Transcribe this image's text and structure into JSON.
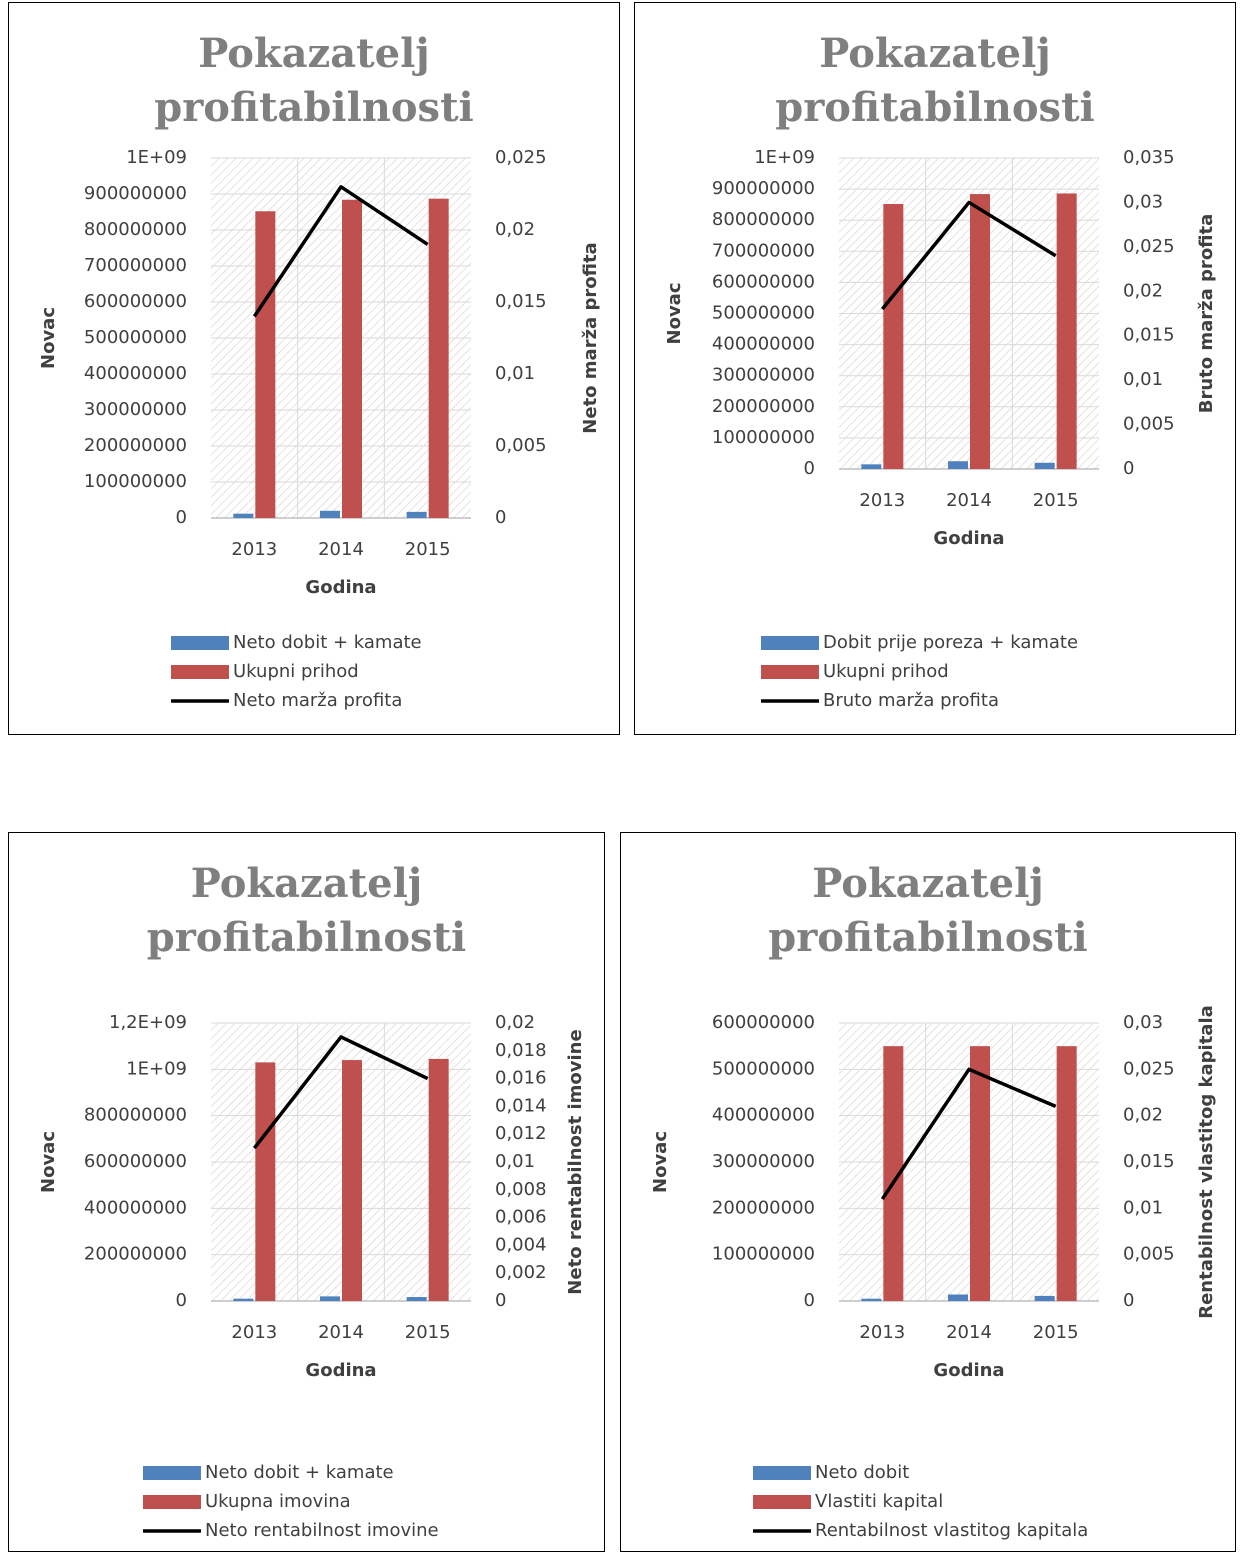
{
  "chart_data": [
    {
      "type": "bar",
      "title": "Pokazatelj profitabilnosti",
      "x_label": "Godina",
      "y_label": "Novac",
      "y2_label": "Neto marža profita",
      "categories": [
        "2013",
        "2014",
        "2015"
      ],
      "series": [
        {
          "name": "Neto dobit + kamate",
          "type": "bar",
          "color": "#4f81bd",
          "values": [
            12000000,
            20000000,
            17000000
          ]
        },
        {
          "name": "Ukupni prihod",
          "type": "bar",
          "color": "#c0504d",
          "values": [
            852000000,
            884000000,
            887000000
          ]
        },
        {
          "name": "Neto marža profita",
          "type": "line",
          "axis": "y2",
          "color": "#000000",
          "values": [
            0.014,
            0.023,
            0.019
          ]
        }
      ],
      "ylim": [
        0,
        1000000000
      ],
      "yticks": [
        0,
        100000000,
        200000000,
        300000000,
        400000000,
        500000000,
        600000000,
        700000000,
        800000000,
        900000000,
        {
          "value": 1000000000,
          "label": "1E+09"
        }
      ],
      "y2lim": [
        0,
        0.025
      ],
      "y2ticks": [
        0,
        {
          "value": 0.005,
          "label": "0,005"
        },
        {
          "value": 0.01,
          "label": "0,01"
        },
        {
          "value": 0.015,
          "label": "0,015"
        },
        {
          "value": 0.02,
          "label": "0,02"
        },
        {
          "value": 0.025,
          "label": "0,025"
        }
      ],
      "grid": true,
      "legend": "bottom"
    },
    {
      "type": "bar",
      "title": "Pokazatelj profitabilnosti",
      "x_label": "Godina",
      "y_label": "Novac",
      "y2_label": "Bruto marža profita",
      "categories": [
        "2013",
        "2014",
        "2015"
      ],
      "series": [
        {
          "name": "Dobit prije poreza + kamate",
          "type": "bar",
          "color": "#4f81bd",
          "values": [
            15000000,
            25000000,
            20000000
          ]
        },
        {
          "name": "Ukupni prihod",
          "type": "bar",
          "color": "#c0504d",
          "values": [
            852000000,
            884000000,
            886000000
          ]
        },
        {
          "name": "Bruto marža profita",
          "type": "line",
          "axis": "y2",
          "color": "#000000",
          "values": [
            0.018,
            0.03,
            0.024
          ]
        }
      ],
      "ylim": [
        0,
        1000000000
      ],
      "yticks": [
        0,
        100000000,
        200000000,
        300000000,
        400000000,
        500000000,
        600000000,
        700000000,
        800000000,
        900000000,
        {
          "value": 1000000000,
          "label": "1E+09"
        }
      ],
      "y2lim": [
        0,
        0.035
      ],
      "y2ticks": [
        0,
        {
          "value": 0.005,
          "label": "0,005"
        },
        {
          "value": 0.01,
          "label": "0,01"
        },
        {
          "value": 0.015,
          "label": "0,015"
        },
        {
          "value": 0.02,
          "label": "0,02"
        },
        {
          "value": 0.025,
          "label": "0,025"
        },
        {
          "value": 0.03,
          "label": "0,03"
        },
        {
          "value": 0.035,
          "label": "0,035"
        }
      ],
      "grid": true,
      "legend": "bottom"
    },
    {
      "type": "bar",
      "title": "Pokazatelj profitabilnosti",
      "x_label": "Godina",
      "y_label": "Novac",
      "y2_label": "Neto rentabilnost imovine",
      "categories": [
        "2013",
        "2014",
        "2015"
      ],
      "series": [
        {
          "name": "Neto dobit + kamate",
          "type": "bar",
          "color": "#4f81bd",
          "values": [
            10000000,
            20000000,
            17000000
          ]
        },
        {
          "name": "Ukupna imovina",
          "type": "bar",
          "color": "#c0504d",
          "values": [
            1030000000,
            1040000000,
            1045000000
          ]
        },
        {
          "name": "Neto rentabilnost imovine",
          "type": "line",
          "axis": "y2",
          "color": "#000000",
          "values": [
            0.011,
            0.019,
            0.016
          ]
        }
      ],
      "ylim": [
        0,
        1200000000
      ],
      "yticks": [
        0,
        200000000,
        400000000,
        600000000,
        800000000,
        {
          "value": 1000000000,
          "label": "1E+09"
        },
        {
          "value": 1200000000,
          "label": "1,2E+09"
        }
      ],
      "y2lim": [
        0,
        0.02
      ],
      "y2ticks": [
        0,
        {
          "value": 0.002,
          "label": "0,002"
        },
        {
          "value": 0.004,
          "label": "0,004"
        },
        {
          "value": 0.006,
          "label": "0,006"
        },
        {
          "value": 0.008,
          "label": "0,008"
        },
        {
          "value": 0.01,
          "label": "0,01"
        },
        {
          "value": 0.012,
          "label": "0,012"
        },
        {
          "value": 0.014,
          "label": "0,014"
        },
        {
          "value": 0.016,
          "label": "0,016"
        },
        {
          "value": 0.018,
          "label": "0,018"
        },
        {
          "value": 0.02,
          "label": "0,02"
        }
      ],
      "grid": true,
      "legend": "bottom"
    },
    {
      "type": "bar",
      "title": "Pokazatelj profitabilnosti",
      "x_label": "Godina",
      "y_label": "Novac",
      "y2_label": "Rentabilnost vlastitog kapitala",
      "categories": [
        "2013",
        "2014",
        "2015"
      ],
      "series": [
        {
          "name": "Neto dobit",
          "type": "bar",
          "color": "#4f81bd",
          "values": [
            5000000,
            14000000,
            11000000
          ]
        },
        {
          "name": "Vlastiti kapital",
          "type": "bar",
          "color": "#c0504d",
          "values": [
            550000000,
            550000000,
            550000000
          ]
        },
        {
          "name": "Rentabilnost vlastitog kapitala",
          "type": "line",
          "axis": "y2",
          "color": "#000000",
          "values": [
            0.011,
            0.025,
            0.021
          ]
        }
      ],
      "ylim": [
        0,
        600000000
      ],
      "yticks": [
        0,
        100000000,
        200000000,
        300000000,
        400000000,
        500000000,
        600000000
      ],
      "y2lim": [
        0,
        0.03
      ],
      "y2ticks": [
        0,
        {
          "value": 0.005,
          "label": "0,005"
        },
        {
          "value": 0.01,
          "label": "0,01"
        },
        {
          "value": 0.015,
          "label": "0,015"
        },
        {
          "value": 0.02,
          "label": "0,02"
        },
        {
          "value": 0.025,
          "label": "0,025"
        },
        {
          "value": 0.03,
          "label": "0,03"
        }
      ],
      "grid": true,
      "legend": "bottom"
    }
  ]
}
